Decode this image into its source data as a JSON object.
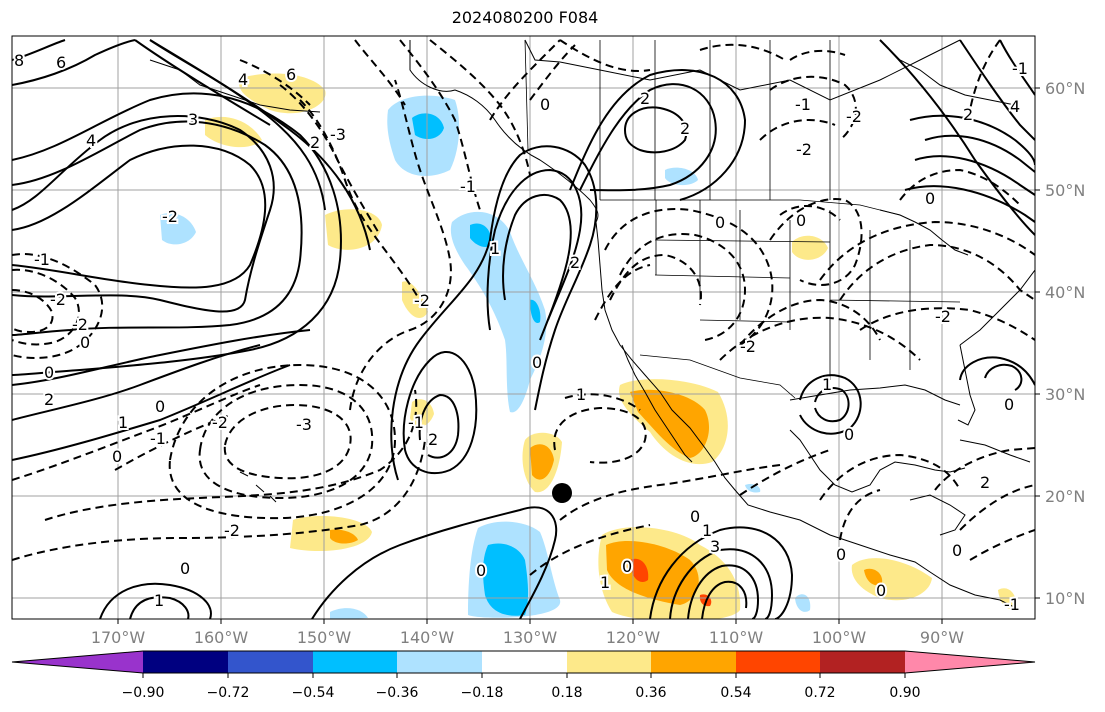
{
  "title": "2024080200 F084",
  "map": {
    "latitude_labels": [
      "60°N",
      "50°N",
      "40°N",
      "30°N",
      "20°N",
      "10°N"
    ],
    "longitude_labels": [
      "170°W",
      "160°W",
      "150°W",
      "140°W",
      "130°W",
      "120°W",
      "110°W",
      "100°W",
      "90°W"
    ],
    "contour_labels": [
      "8",
      "6",
      "4",
      "3",
      "2",
      "1",
      "0",
      "-1",
      "-2",
      "-3"
    ],
    "marker": "filled-black-circle"
  },
  "colorbar": {
    "ticks": [
      "−0.90",
      "−0.72",
      "−0.54",
      "−0.36",
      "−0.18",
      "0.18",
      "0.36",
      "0.54",
      "0.72",
      "0.90"
    ],
    "colors": [
      "#9933cc",
      "#000080",
      "#3355cc",
      "#00bfff",
      "#aee2ff",
      "#ffffff",
      "#fde98a",
      "#ffa500",
      "#ff4500",
      "#b22222",
      "#ff88aa"
    ]
  },
  "colors": {
    "frame": "#000000",
    "grid": "#a0a0a0",
    "label_gray": "#808080"
  }
}
